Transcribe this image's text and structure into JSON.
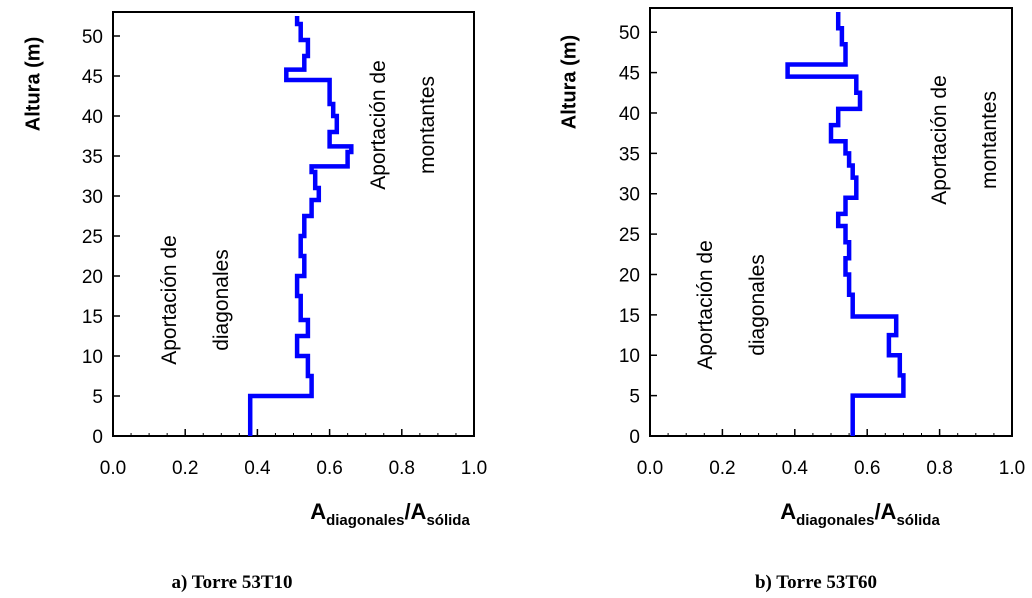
{
  "chart_data": [
    {
      "type": "line",
      "caption": "a) Torre 53T10",
      "ylabel": "Altura (m)",
      "xlabel": {
        "main": "A",
        "sub1": "diagonales",
        "sep": "/A",
        "sub2": "sólida"
      },
      "xlim": [
        0.0,
        1.0
      ],
      "ylim": [
        0,
        53
      ],
      "xticks": [
        "0.0",
        "0.2",
        "0.4",
        "0.6",
        "0.8",
        "1.0"
      ],
      "yticks": [
        "0",
        "5",
        "10",
        "15",
        "20",
        "25",
        "30",
        "35",
        "40",
        "45",
        "50"
      ],
      "annotations": {
        "left": [
          "Aportación de",
          "diagonales"
        ],
        "right": [
          "Aportación de",
          "montantes"
        ]
      },
      "color": "#0000FF",
      "series": [
        {
          "points": [
            [
              0.38,
              0
            ],
            [
              0.38,
              5.0
            ],
            [
              0.55,
              5.0
            ],
            [
              0.55,
              7.5
            ],
            [
              0.54,
              7.5
            ],
            [
              0.54,
              10.0
            ],
            [
              0.51,
              10.0
            ],
            [
              0.51,
              12.5
            ],
            [
              0.54,
              12.5
            ],
            [
              0.54,
              14.5
            ],
            [
              0.52,
              14.5
            ],
            [
              0.52,
              17.5
            ],
            [
              0.51,
              17.5
            ],
            [
              0.51,
              20.0
            ],
            [
              0.53,
              20.0
            ],
            [
              0.53,
              22.5
            ],
            [
              0.52,
              22.5
            ],
            [
              0.52,
              25.0
            ],
            [
              0.53,
              25.0
            ],
            [
              0.53,
              27.5
            ],
            [
              0.55,
              27.5
            ],
            [
              0.55,
              29.5
            ],
            [
              0.57,
              29.5
            ],
            [
              0.57,
              31.0
            ],
            [
              0.56,
              31.0
            ],
            [
              0.56,
              33.0
            ],
            [
              0.55,
              33.0
            ],
            [
              0.55,
              33.7
            ],
            [
              0.65,
              33.7
            ],
            [
              0.65,
              35.5
            ],
            [
              0.66,
              35.5
            ],
            [
              0.66,
              36.2
            ],
            [
              0.6,
              36.2
            ],
            [
              0.6,
              38.0
            ],
            [
              0.62,
              38.0
            ],
            [
              0.62,
              40.0
            ],
            [
              0.61,
              40.0
            ],
            [
              0.61,
              41.5
            ],
            [
              0.6,
              41.5
            ],
            [
              0.6,
              44.5
            ],
            [
              0.48,
              44.5
            ],
            [
              0.48,
              45.8
            ],
            [
              0.53,
              45.8
            ],
            [
              0.53,
              47.5
            ],
            [
              0.54,
              47.5
            ],
            [
              0.54,
              49.5
            ],
            [
              0.52,
              49.5
            ],
            [
              0.52,
              51.5
            ],
            [
              0.51,
              51.5
            ],
            [
              0.51,
              52.5
            ]
          ]
        }
      ]
    },
    {
      "type": "line",
      "caption": "b) Torre 53T60",
      "ylabel": "Altura (m)",
      "xlabel": {
        "main": "A",
        "sub1": "diagonales",
        "sep": "/A",
        "sub2": "sólida"
      },
      "xlim": [
        0.0,
        1.0
      ],
      "ylim": [
        0,
        53
      ],
      "xticks": [
        "0.0",
        "0.2",
        "0.4",
        "0.6",
        "0.8",
        "1.0"
      ],
      "yticks": [
        "0",
        "5",
        "10",
        "15",
        "20",
        "25",
        "30",
        "35",
        "40",
        "45",
        "50"
      ],
      "annotations": {
        "left": [
          "Aportación de",
          "diagonales"
        ],
        "right": [
          "Aportación de",
          "montantes"
        ]
      },
      "color": "#0000FF",
      "series": [
        {
          "points": [
            [
              0.56,
              0
            ],
            [
              0.56,
              5.0
            ],
            [
              0.7,
              5.0
            ],
            [
              0.7,
              7.5
            ],
            [
              0.69,
              7.5
            ],
            [
              0.69,
              10.0
            ],
            [
              0.66,
              10.0
            ],
            [
              0.66,
              12.5
            ],
            [
              0.68,
              12.5
            ],
            [
              0.68,
              14.8
            ],
            [
              0.56,
              14.8
            ],
            [
              0.56,
              17.5
            ],
            [
              0.55,
              17.5
            ],
            [
              0.55,
              20.0
            ],
            [
              0.54,
              20.0
            ],
            [
              0.54,
              22.0
            ],
            [
              0.55,
              22.0
            ],
            [
              0.55,
              24.0
            ],
            [
              0.54,
              24.0
            ],
            [
              0.54,
              26.0
            ],
            [
              0.52,
              26.0
            ],
            [
              0.52,
              27.5
            ],
            [
              0.54,
              27.5
            ],
            [
              0.54,
              29.5
            ],
            [
              0.57,
              29.5
            ],
            [
              0.57,
              32.0
            ],
            [
              0.56,
              32.0
            ],
            [
              0.56,
              33.5
            ],
            [
              0.55,
              33.5
            ],
            [
              0.55,
              35.0
            ],
            [
              0.54,
              35.0
            ],
            [
              0.54,
              36.5
            ],
            [
              0.5,
              36.5
            ],
            [
              0.5,
              38.5
            ],
            [
              0.52,
              38.5
            ],
            [
              0.52,
              40.5
            ],
            [
              0.58,
              40.5
            ],
            [
              0.58,
              42.5
            ],
            [
              0.57,
              42.5
            ],
            [
              0.57,
              44.5
            ],
            [
              0.38,
              44.5
            ],
            [
              0.38,
              46.0
            ],
            [
              0.54,
              46.0
            ],
            [
              0.54,
              48.5
            ],
            [
              0.53,
              48.5
            ],
            [
              0.53,
              50.5
            ],
            [
              0.52,
              50.5
            ],
            [
              0.52,
              52.5
            ]
          ]
        }
      ]
    }
  ]
}
